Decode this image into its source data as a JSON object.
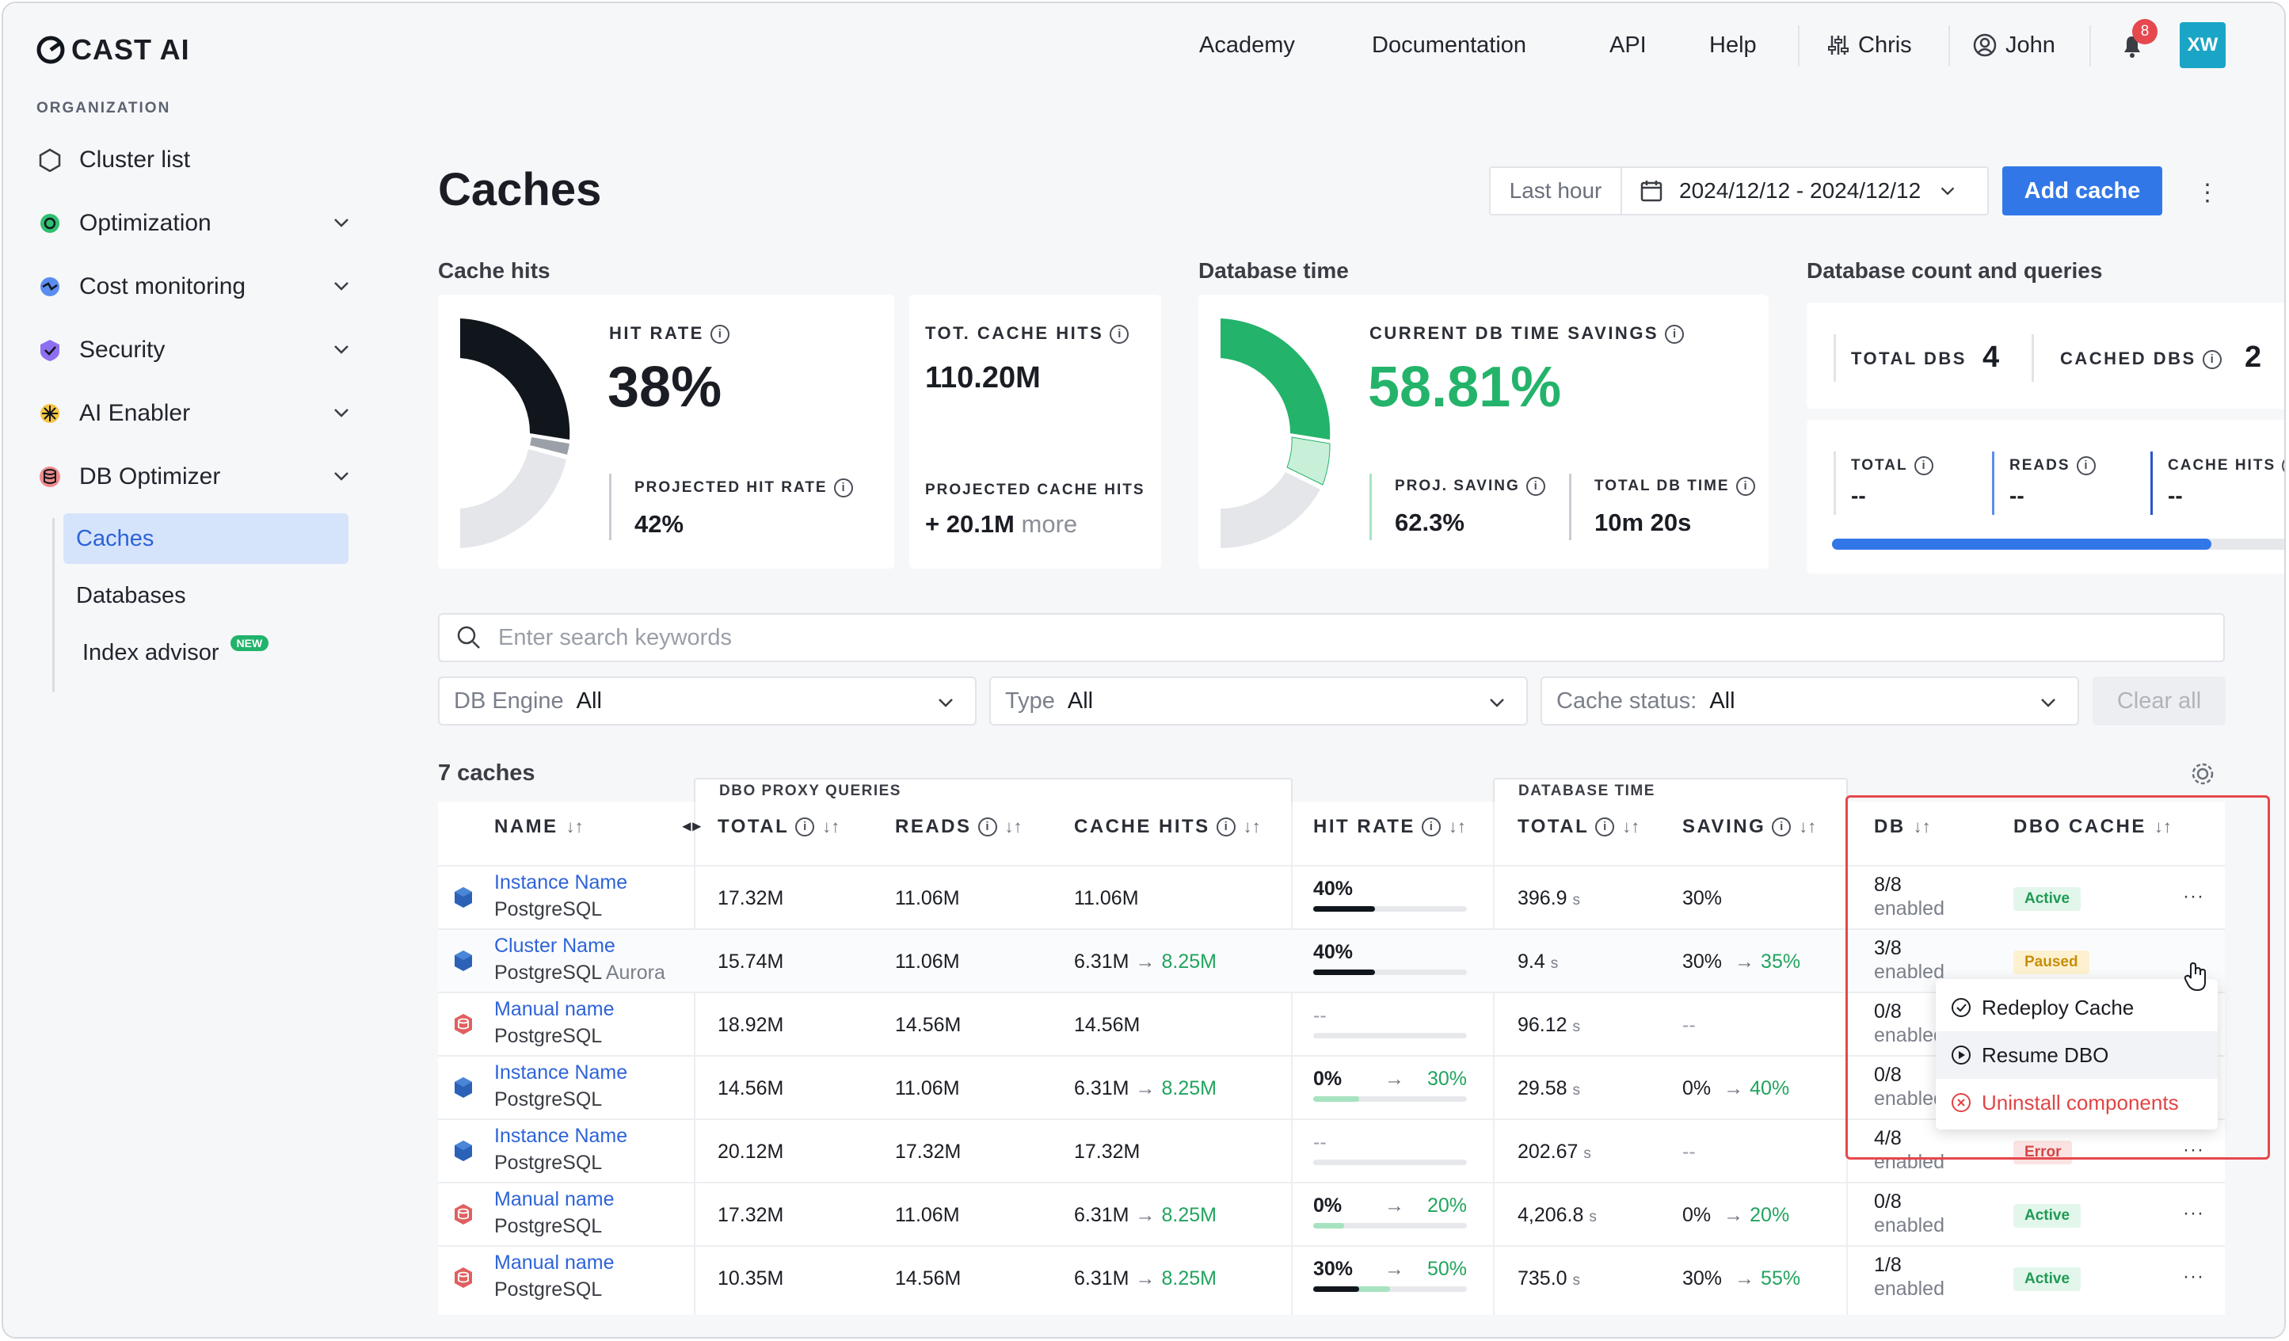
{
  "brand": {
    "logo_text": "CAST AI",
    "accent": "#3277e8",
    "danger": "#e5484d"
  },
  "sidebar": {
    "section_header": "ORGANIZATION",
    "items": [
      {
        "label": "Cluster list",
        "icon": "hexagon-icon"
      },
      {
        "label": "Optimization",
        "icon": "optimization-icon"
      },
      {
        "label": "Cost monitoring",
        "icon": "cost-monitoring-icon"
      },
      {
        "label": "Security",
        "icon": "shield-icon"
      },
      {
        "label": "AI Enabler",
        "icon": "ai-enabler-icon"
      },
      {
        "label": "DB Optimizer",
        "icon": "database-icon"
      }
    ],
    "sub_items": [
      {
        "label": "Caches"
      },
      {
        "label": "Databases"
      },
      {
        "label": "Index advisor",
        "badge": "NEW"
      }
    ]
  },
  "topnav": {
    "links": [
      "Academy",
      "Documentation",
      "API",
      "Help"
    ],
    "org": "Chris",
    "user": "John",
    "notifications": "8",
    "avatar": "XW"
  },
  "page": {
    "title": "Caches",
    "last_hour": "Last hour",
    "date_range": "2024/12/12 - 2024/12/12",
    "add_button": "Add cache"
  },
  "cache_hits": {
    "section": "Cache hits",
    "hit_rate_label": "HIT RATE",
    "hit_rate": "38%",
    "projected_label": "PROJECTED HIT RATE",
    "projected": "42%",
    "tot_label": "TOT. CACHE HITS",
    "tot": "110.20M",
    "proj_hits_label": "PROJECTED CACHE HITS",
    "proj_hits": "+ 20.1M",
    "proj_hits_more": "more"
  },
  "db_time": {
    "section": "Database time",
    "savings_label": "CURRENT DB TIME SAVINGS",
    "savings": "58.81%",
    "proj_saving_label": "PROJ. SAVING",
    "proj_saving": "62.3%",
    "total_label": "TOTAL DB TIME",
    "total": "10m 20s"
  },
  "db_count": {
    "section": "Database count and queries",
    "total_dbs_label": "TOTAL DBS",
    "total_dbs": "4",
    "cached_dbs_label": "CACHED DBS",
    "cached_dbs": "2",
    "q_total_label": "TOTAL",
    "q_total": "--",
    "q_reads_label": "READS",
    "q_reads": "--",
    "q_hits_label": "CACHE HITS",
    "q_hits": "--",
    "queries_progress": 0.83
  },
  "filters": {
    "search_placeholder": "Enter search keywords",
    "engine_label": "DB Engine",
    "engine_value": "All",
    "type_label": "Type",
    "type_value": "All",
    "status_label": "Cache status:",
    "status_value": "All",
    "clear": "Clear all"
  },
  "table": {
    "count": "7 caches",
    "group_proxy": "DBO PROXY QUERIES",
    "group_dbtime": "DATABASE TIME",
    "headers": {
      "name": "NAME",
      "total": "TOTAL",
      "reads": "READS",
      "cache_hits": "CACHE HITS",
      "hit_rate": "HIT RATE",
      "db_total": "TOTAL",
      "saving": "SAVING",
      "db": "DB",
      "dbo_cache": "DBO CACHE"
    },
    "rows": [
      {
        "name": "Instance Name",
        "engine": "PostgreSQL",
        "engine_extra": "",
        "icon": "postgres",
        "total": "17.32M",
        "reads": "11.06M",
        "hits": "11.06M",
        "hits_proj": "",
        "hr": "40%",
        "hr_proj": "",
        "hr_fill": 0.4,
        "hr_proj_fill": 0,
        "dbt": "396.9",
        "dbt_unit": "s",
        "saving": "30%",
        "saving_proj": "",
        "db": "8/8",
        "db_sub": "enabled",
        "status": "Active",
        "status_kind": "ok"
      },
      {
        "name": "Cluster Name",
        "engine": "PostgreSQL",
        "engine_extra": "Aurora",
        "icon": "postgres",
        "total": "15.74M",
        "reads": "11.06M",
        "hits": "6.31M",
        "hits_proj": "8.25M",
        "hr": "40%",
        "hr_proj": "",
        "hr_fill": 0.4,
        "hr_proj_fill": 0,
        "dbt": "9.4",
        "dbt_unit": "s",
        "saving": "30%",
        "saving_proj": "35%",
        "db": "3/8",
        "db_sub": "enabled",
        "status": "Paused",
        "status_kind": "pa"
      },
      {
        "name": "Manual name",
        "engine": "PostgreSQL",
        "engine_extra": "",
        "icon": "manual",
        "total": "18.92M",
        "reads": "14.56M",
        "hits": "14.56M",
        "hits_proj": "",
        "hr": "--",
        "hr_proj": "",
        "hr_fill": 0,
        "hr_proj_fill": 0,
        "dbt": "96.12",
        "dbt_unit": "s",
        "saving": "--",
        "saving_proj": "",
        "db": "0/8",
        "db_sub": "enabled",
        "status": "",
        "status_kind": ""
      },
      {
        "name": "Instance Name",
        "engine": "PostgreSQL",
        "engine_extra": "",
        "icon": "postgres",
        "total": "14.56M",
        "reads": "11.06M",
        "hits": "6.31M",
        "hits_proj": "8.25M",
        "hr": "0%",
        "hr_proj": "30%",
        "hr_fill": 0,
        "hr_proj_fill": 0.3,
        "dbt": "29.58",
        "dbt_unit": "s",
        "saving": "0%",
        "saving_proj": "40%",
        "db": "0/8",
        "db_sub": "enabled",
        "status": "",
        "status_kind": ""
      },
      {
        "name": "Instance Name",
        "engine": "PostgreSQL",
        "engine_extra": "",
        "icon": "postgres",
        "total": "20.12M",
        "reads": "17.32M",
        "hits": "17.32M",
        "hits_proj": "",
        "hr": "--",
        "hr_proj": "",
        "hr_fill": 0,
        "hr_proj_fill": 0,
        "dbt": "202.67",
        "dbt_unit": "s",
        "saving": "--",
        "saving_proj": "",
        "db": "4/8",
        "db_sub": "enabled",
        "status": "Error",
        "status_kind": "er"
      },
      {
        "name": "Manual name",
        "engine": "PostgreSQL",
        "engine_extra": "",
        "icon": "manual",
        "total": "17.32M",
        "reads": "11.06M",
        "hits": "6.31M",
        "hits_proj": "8.25M",
        "hr": "0%",
        "hr_proj": "20%",
        "hr_fill": 0,
        "hr_proj_fill": 0.2,
        "dbt": "4,206.8",
        "dbt_unit": "s",
        "saving": "0%",
        "saving_proj": "20%",
        "db": "0/8",
        "db_sub": "enabled",
        "status": "Active",
        "status_kind": "ok"
      },
      {
        "name": "Manual name",
        "engine": "PostgreSQL",
        "engine_extra": "",
        "icon": "manual",
        "total": "10.35M",
        "reads": "14.56M",
        "hits": "6.31M",
        "hits_proj": "8.25M",
        "hr": "30%",
        "hr_proj": "50%",
        "hr_fill": 0.3,
        "hr_proj_fill": 0.5,
        "dbt": "735.0",
        "dbt_unit": "s",
        "saving": "30%",
        "saving_proj": "55%",
        "db": "1/8",
        "db_sub": "enabled",
        "status": "Active",
        "status_kind": "ok"
      }
    ]
  },
  "context_menu": {
    "items": [
      {
        "label": "Redeploy Cache",
        "icon": "check-circle-icon"
      },
      {
        "label": "Resume DBO",
        "icon": "play-circle-icon"
      },
      {
        "label": "Uninstall components",
        "icon": "x-circle-icon"
      }
    ]
  }
}
